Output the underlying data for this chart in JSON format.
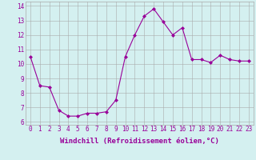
{
  "x": [
    0,
    1,
    2,
    3,
    4,
    5,
    6,
    7,
    8,
    9,
    10,
    11,
    12,
    13,
    14,
    15,
    16,
    17,
    18,
    19,
    20,
    21,
    22,
    23
  ],
  "y": [
    10.5,
    8.5,
    8.4,
    6.8,
    6.4,
    6.4,
    6.6,
    6.6,
    6.7,
    7.5,
    10.5,
    12.0,
    13.3,
    13.8,
    12.9,
    12.0,
    12.5,
    10.3,
    10.3,
    10.1,
    10.6,
    10.3,
    10.2,
    10.2
  ],
  "line_color": "#990099",
  "marker": "D",
  "marker_size": 2,
  "bg_color": "#d4f0f0",
  "grid_color": "#aaaaaa",
  "xlabel": "Windchill (Refroidissement éolien,°C)",
  "xlabel_fontsize": 6.5,
  "ylabel_ticks": [
    6,
    7,
    8,
    9,
    10,
    11,
    12,
    13,
    14
  ],
  "xlim": [
    -0.5,
    23.5
  ],
  "ylim": [
    5.8,
    14.3
  ],
  "tick_fontsize": 5.5
}
